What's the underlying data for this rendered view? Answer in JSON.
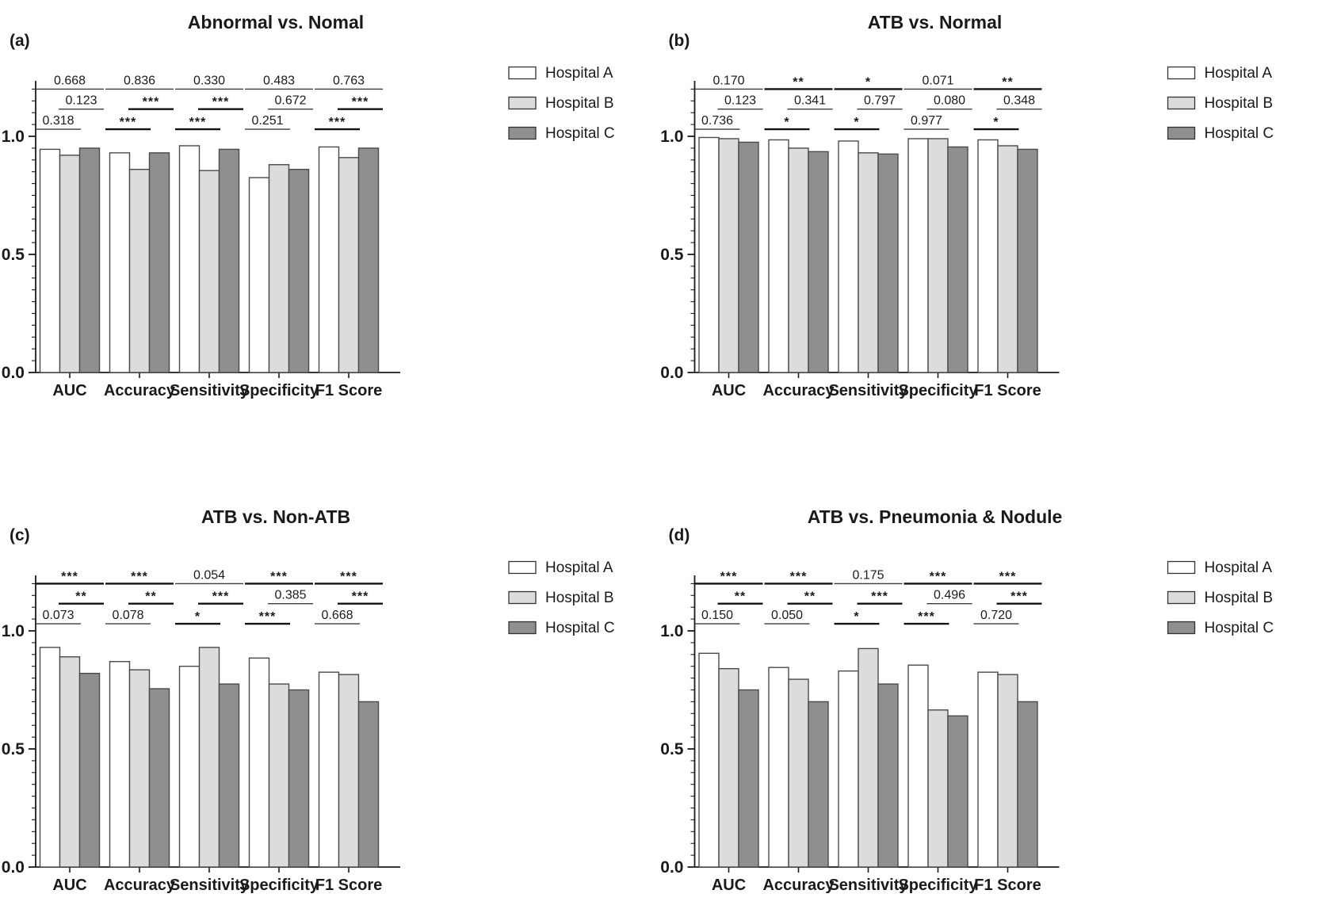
{
  "figure": {
    "description": "Four grouped bar chart panels comparing model performance metrics across three hospitals, with pairwise significance brackets (p-values or asterisks).",
    "background_color": "#ffffff",
    "text_color": "#1a1a1a",
    "bar_outline_color": "#4a4a4a",
    "series_colors": {
      "hospital_a": "#ffffff",
      "hospital_b": "#dcdcdc",
      "hospital_c": "#8f8f8f"
    }
  },
  "legend": {
    "entries": [
      {
        "label": "Hospital A",
        "color": "#ffffff"
      },
      {
        "label": "Hospital B",
        "color": "#dcdcdc"
      },
      {
        "label": "Hospital C",
        "color": "#8f8f8f"
      }
    ],
    "position": "right"
  },
  "chart_data": [
    {
      "type": "bar",
      "panel_label": "(a)",
      "title": "Abnormal vs. Nomal",
      "categories": [
        "AUC",
        "Accuracy",
        "Sensitivity",
        "Specificity",
        "F1 Score"
      ],
      "series": [
        {
          "name": "Hospital A",
          "color": "#ffffff",
          "values": [
            0.945,
            0.93,
            0.96,
            0.825,
            0.955
          ]
        },
        {
          "name": "Hospital B",
          "color": "#dcdcdc",
          "values": [
            0.92,
            0.86,
            0.855,
            0.88,
            0.91
          ]
        },
        {
          "name": "Hospital C",
          "color": "#8f8f8f",
          "values": [
            0.95,
            0.93,
            0.945,
            0.86,
            0.95
          ]
        }
      ],
      "xlabel": "",
      "ylabel": "",
      "ylim": [
        0,
        1.24
      ],
      "yticks": [
        "0.0",
        "0.5",
        "1.0"
      ],
      "minor_tick_step": 0.05,
      "grid": false,
      "legend_position": "right",
      "significance": [
        {
          "category": "AUC",
          "a_vs_b": "0.318",
          "b_vs_c": "0.123",
          "a_vs_c": "0.668"
        },
        {
          "category": "Accuracy",
          "a_vs_b": "***",
          "b_vs_c": "***",
          "a_vs_c": "0.836"
        },
        {
          "category": "Sensitivity",
          "a_vs_b": "***",
          "b_vs_c": "***",
          "a_vs_c": "0.330"
        },
        {
          "category": "Specificity",
          "a_vs_b": "0.251",
          "b_vs_c": "0.672",
          "a_vs_c": "0.483"
        },
        {
          "category": "F1 Score",
          "a_vs_b": "***",
          "b_vs_c": "***",
          "a_vs_c": "0.763"
        }
      ]
    },
    {
      "type": "bar",
      "panel_label": "(b)",
      "title": "ATB vs. Normal",
      "categories": [
        "AUC",
        "Accuracy",
        "Sensitivity",
        "Specificity",
        "F1 Score"
      ],
      "series": [
        {
          "name": "Hospital A",
          "color": "#ffffff",
          "values": [
            0.995,
            0.985,
            0.98,
            0.99,
            0.985
          ]
        },
        {
          "name": "Hospital B",
          "color": "#dcdcdc",
          "values": [
            0.99,
            0.95,
            0.93,
            0.99,
            0.96
          ]
        },
        {
          "name": "Hospital C",
          "color": "#8f8f8f",
          "values": [
            0.975,
            0.935,
            0.925,
            0.955,
            0.945
          ]
        }
      ],
      "xlabel": "",
      "ylabel": "",
      "ylim": [
        0,
        1.24
      ],
      "yticks": [
        "0.0",
        "0.5",
        "1.0"
      ],
      "minor_tick_step": 0.05,
      "grid": false,
      "legend_position": "right",
      "significance": [
        {
          "category": "AUC",
          "a_vs_b": "0.736",
          "b_vs_c": "0.123",
          "a_vs_c": "0.170"
        },
        {
          "category": "Accuracy",
          "a_vs_b": "*",
          "b_vs_c": "0.341",
          "a_vs_c": "**"
        },
        {
          "category": "Sensitivity",
          "a_vs_b": "*",
          "b_vs_c": "0.797",
          "a_vs_c": "*"
        },
        {
          "category": "Specificity",
          "a_vs_b": "0.977",
          "b_vs_c": "0.080",
          "a_vs_c": "0.071"
        },
        {
          "category": "F1 Score",
          "a_vs_b": "*",
          "b_vs_c": "0.348",
          "a_vs_c": "**"
        }
      ]
    },
    {
      "type": "bar",
      "panel_label": "(c)",
      "title": "ATB vs. Non-ATB",
      "categories": [
        "AUC",
        "Accuracy",
        "Sensitivity",
        "Specificity",
        "F1 Score"
      ],
      "series": [
        {
          "name": "Hospital A",
          "color": "#ffffff",
          "values": [
            0.93,
            0.87,
            0.85,
            0.885,
            0.825
          ]
        },
        {
          "name": "Hospital B",
          "color": "#dcdcdc",
          "values": [
            0.89,
            0.835,
            0.93,
            0.775,
            0.815
          ]
        },
        {
          "name": "Hospital C",
          "color": "#8f8f8f",
          "values": [
            0.82,
            0.755,
            0.775,
            0.75,
            0.7
          ]
        }
      ],
      "xlabel": "",
      "ylabel": "",
      "ylim": [
        0,
        1.24
      ],
      "yticks": [
        "0.0",
        "0.5",
        "1.0"
      ],
      "minor_tick_step": 0.05,
      "grid": false,
      "legend_position": "right",
      "significance": [
        {
          "category": "AUC",
          "a_vs_b": "0.073",
          "b_vs_c": "**",
          "a_vs_c": "***"
        },
        {
          "category": "Accuracy",
          "a_vs_b": "0.078",
          "b_vs_c": "**",
          "a_vs_c": "***"
        },
        {
          "category": "Sensitivity",
          "a_vs_b": "*",
          "b_vs_c": "***",
          "a_vs_c": "0.054"
        },
        {
          "category": "Specificity",
          "a_vs_b": "***",
          "b_vs_c": "0.385",
          "a_vs_c": "***"
        },
        {
          "category": "F1 Score",
          "a_vs_b": "0.668",
          "b_vs_c": "***",
          "a_vs_c": "***"
        }
      ]
    },
    {
      "type": "bar",
      "panel_label": "(d)",
      "title": "ATB vs. Pneumonia & Nodule",
      "categories": [
        "AUC",
        "Accuracy",
        "Sensitivity",
        "Specificity",
        "F1 Score"
      ],
      "series": [
        {
          "name": "Hospital A",
          "color": "#ffffff",
          "values": [
            0.905,
            0.845,
            0.83,
            0.855,
            0.825
          ]
        },
        {
          "name": "Hospital B",
          "color": "#dcdcdc",
          "values": [
            0.84,
            0.795,
            0.925,
            0.665,
            0.815
          ]
        },
        {
          "name": "Hospital C",
          "color": "#8f8f8f",
          "values": [
            0.75,
            0.7,
            0.775,
            0.64,
            0.7
          ]
        }
      ],
      "xlabel": "",
      "ylabel": "",
      "ylim": [
        0,
        1.24
      ],
      "yticks": [
        "0.0",
        "0.5",
        "1.0"
      ],
      "minor_tick_step": 0.05,
      "grid": false,
      "legend_position": "right",
      "significance": [
        {
          "category": "AUC",
          "a_vs_b": "0.150",
          "b_vs_c": "**",
          "a_vs_c": "***"
        },
        {
          "category": "Accuracy",
          "a_vs_b": "0.050",
          "b_vs_c": "**",
          "a_vs_c": "***"
        },
        {
          "category": "Sensitivity",
          "a_vs_b": "*",
          "b_vs_c": "***",
          "a_vs_c": "0.175"
        },
        {
          "category": "Specificity",
          "a_vs_b": "***",
          "b_vs_c": "0.496",
          "a_vs_c": "***"
        },
        {
          "category": "F1 Score",
          "a_vs_b": "0.720",
          "b_vs_c": "***",
          "a_vs_c": "***"
        }
      ]
    }
  ]
}
